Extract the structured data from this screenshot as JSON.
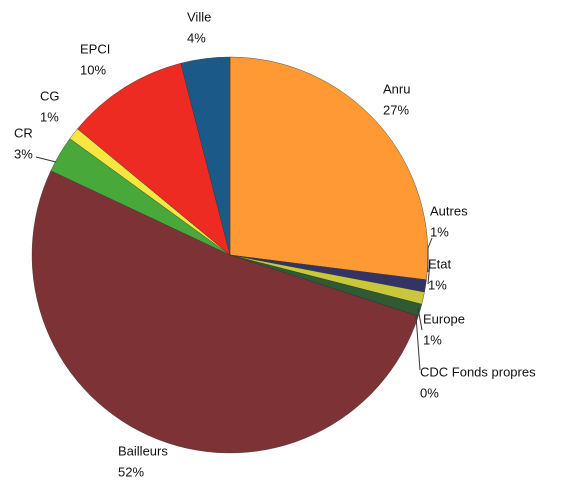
{
  "chart_data": {
    "type": "pie",
    "categories": [
      "Anru",
      "Autres",
      "Etat",
      "Europe",
      "CDC Fonds propres",
      "Bailleurs",
      "CR",
      "CG",
      "EPCI",
      "Ville"
    ],
    "values": [
      27,
      1,
      1,
      1,
      0,
      52,
      3,
      1,
      10,
      4
    ],
    "value_labels": [
      "27%",
      "1%",
      "1%",
      "1%",
      "0%",
      "52%",
      "3%",
      "1%",
      "10%",
      "4%"
    ],
    "colors": [
      "#ff9933",
      "#333366",
      "#c8c83a",
      "#2f5a33",
      "#66ccff",
      "#7d3336",
      "#48a83a",
      "#f5e640",
      "#ee2b22",
      "#1b5a88"
    ]
  }
}
